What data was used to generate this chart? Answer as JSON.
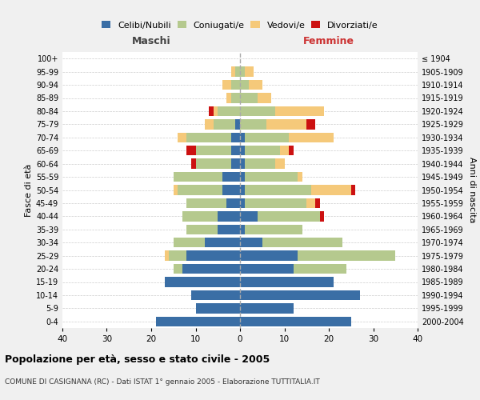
{
  "age_groups": [
    "0-4",
    "5-9",
    "10-14",
    "15-19",
    "20-24",
    "25-29",
    "30-34",
    "35-39",
    "40-44",
    "45-49",
    "50-54",
    "55-59",
    "60-64",
    "65-69",
    "70-74",
    "75-79",
    "80-84",
    "85-89",
    "90-94",
    "95-99",
    "100+"
  ],
  "birth_years": [
    "2000-2004",
    "1995-1999",
    "1990-1994",
    "1985-1989",
    "1980-1984",
    "1975-1979",
    "1970-1974",
    "1965-1969",
    "1960-1964",
    "1955-1959",
    "1950-1954",
    "1945-1949",
    "1940-1944",
    "1935-1939",
    "1930-1934",
    "1925-1929",
    "1920-1924",
    "1915-1919",
    "1910-1914",
    "1905-1909",
    "≤ 1904"
  ],
  "colors": {
    "celibi": "#3a6ea5",
    "coniugati": "#b5c98e",
    "vedovi": "#f5c97a",
    "divorziati": "#cc1111"
  },
  "male": {
    "celibi": [
      19,
      10,
      11,
      17,
      13,
      12,
      8,
      5,
      5,
      3,
      4,
      4,
      2,
      2,
      2,
      1,
      0,
      0,
      0,
      0,
      0
    ],
    "coniugati": [
      0,
      0,
      0,
      0,
      2,
      4,
      7,
      7,
      8,
      9,
      10,
      11,
      8,
      8,
      10,
      5,
      5,
      2,
      2,
      1,
      0
    ],
    "vedovi": [
      0,
      0,
      0,
      0,
      0,
      1,
      0,
      0,
      0,
      0,
      1,
      0,
      0,
      0,
      2,
      2,
      1,
      1,
      2,
      1,
      0
    ],
    "divorziati": [
      0,
      0,
      0,
      0,
      0,
      0,
      0,
      0,
      0,
      0,
      0,
      0,
      1,
      2,
      0,
      0,
      1,
      0,
      0,
      0,
      0
    ]
  },
  "female": {
    "celibi": [
      25,
      12,
      27,
      21,
      12,
      13,
      5,
      1,
      4,
      1,
      1,
      1,
      1,
      1,
      1,
      0,
      0,
      0,
      0,
      0,
      0
    ],
    "coniugati": [
      0,
      0,
      0,
      0,
      12,
      22,
      18,
      13,
      14,
      14,
      15,
      12,
      7,
      8,
      10,
      6,
      8,
      4,
      2,
      1,
      0
    ],
    "vedovi": [
      0,
      0,
      0,
      0,
      0,
      0,
      0,
      0,
      0,
      2,
      9,
      1,
      2,
      2,
      10,
      9,
      11,
      3,
      3,
      2,
      0
    ],
    "divorziati": [
      0,
      0,
      0,
      0,
      0,
      0,
      0,
      0,
      1,
      1,
      1,
      0,
      0,
      1,
      0,
      2,
      0,
      0,
      0,
      0,
      0
    ]
  },
  "title": "Popolazione per età, sesso e stato civile - 2005",
  "subtitle": "COMUNE DI CASIGNANA (RC) - Dati ISTAT 1° gennaio 2005 - Elaborazione TUTTITALIA.IT",
  "xlabel_left": "Maschi",
  "xlabel_right": "Femmine",
  "ylabel_left": "Fasce di età",
  "ylabel_right": "Anni di nascita",
  "xlim": 40,
  "legend_labels": [
    "Celibi/Nubili",
    "Coniugati/e",
    "Vedovi/e",
    "Divorziati/e"
  ],
  "bg_color": "#f0f0f0",
  "plot_bg": "#ffffff"
}
